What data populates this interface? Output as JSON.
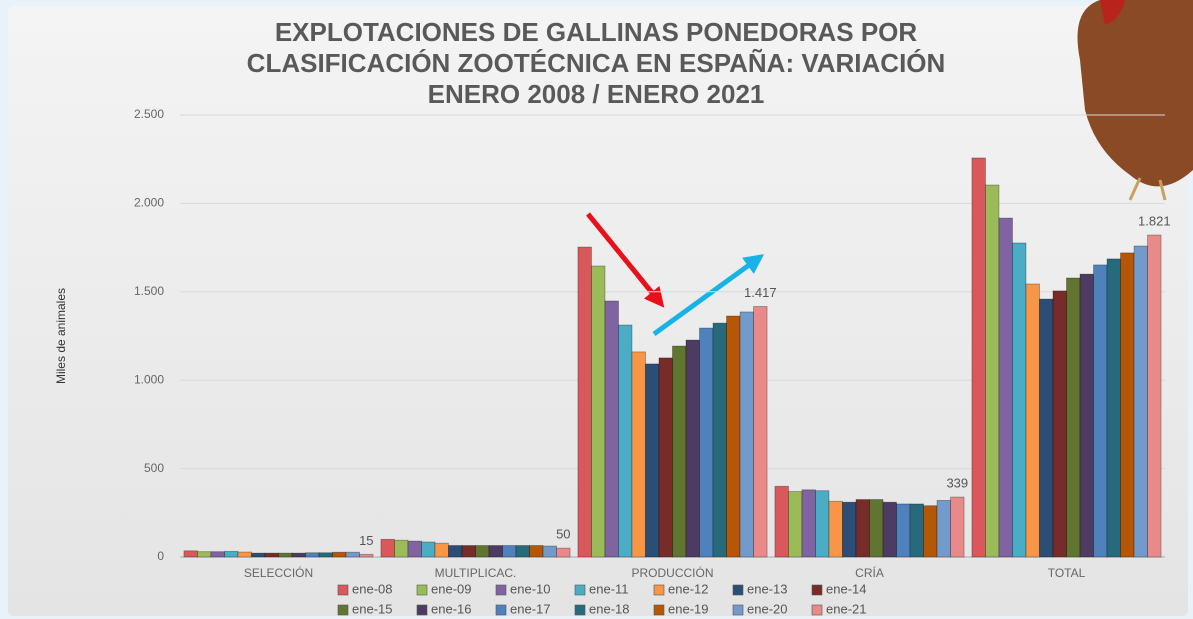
{
  "chart_data": {
    "type": "bar",
    "title": [
      "EXPLOTACIONES DE GALLINAS PONEDORAS POR",
      "CLASIFICACIÓN ZOOTÉCNICA EN ESPAÑA: VARIACIÓN",
      "ENERO 2008 / ENERO 2021"
    ],
    "y_label": "Miles de animales",
    "categories": [
      "SELECCIÓN",
      "MULTIPLICAC.",
      "PRODUCCIÓN",
      "CRÍA",
      "TOTAL"
    ],
    "ylim": [
      0,
      2500
    ],
    "yticks": [
      0,
      500,
      {
        "value": 1000,
        "label": "1.000"
      },
      {
        "value": 1500,
        "label": "1.500"
      },
      {
        "value": 2000,
        "label": "2.000"
      },
      {
        "value": 2500,
        "label": "2.500"
      }
    ],
    "grid": true,
    "legend": "bottom",
    "series": [
      {
        "name": "ene-08",
        "color": "#d9585b",
        "values": [
          35,
          100,
          1753,
          400,
          2257
        ]
      },
      {
        "name": "ene-09",
        "color": "#9bbb59",
        "values": [
          30,
          95,
          1646,
          370,
          2104
        ]
      },
      {
        "name": "ene-10",
        "color": "#8064a2",
        "values": [
          30,
          90,
          1448,
          380,
          1917
        ]
      },
      {
        "name": "ene-11",
        "color": "#4bacc6",
        "values": [
          32,
          85,
          1312,
          375,
          1776
        ]
      },
      {
        "name": "ene-12",
        "color": "#f79646",
        "values": [
          28,
          78,
          1160,
          315,
          1544
        ]
      },
      {
        "name": "ene-13",
        "color": "#2c4d75",
        "values": [
          22,
          65,
          1092,
          310,
          1459
        ]
      },
      {
        "name": "ene-14",
        "color": "#772c2a",
        "values": [
          22,
          65,
          1126,
          325,
          1505
        ]
      },
      {
        "name": "ene-15",
        "color": "#5f7530",
        "values": [
          22,
          65,
          1193,
          325,
          1578
        ]
      },
      {
        "name": "ene-16",
        "color": "#4d3b62",
        "values": [
          22,
          65,
          1227,
          310,
          1600
        ]
      },
      {
        "name": "ene-17",
        "color": "#4f81bd",
        "values": [
          24,
          65,
          1295,
          300,
          1652
        ]
      },
      {
        "name": "ene-18",
        "color": "#276a7c",
        "values": [
          24,
          65,
          1323,
          300,
          1686
        ]
      },
      {
        "name": "ene-19",
        "color": "#b65708",
        "values": [
          27,
          65,
          1363,
          290,
          1720
        ]
      },
      {
        "name": "ene-20",
        "color": "#729aca",
        "values": [
          27,
          62,
          1386,
          320,
          1759
        ]
      },
      {
        "name": "ene-21",
        "color": "#e88a8a",
        "values": [
          15,
          50,
          1417,
          339,
          1821
        ],
        "value_labels": [
          "15",
          "50",
          "1.417",
          "339",
          "1.821"
        ]
      }
    ]
  }
}
